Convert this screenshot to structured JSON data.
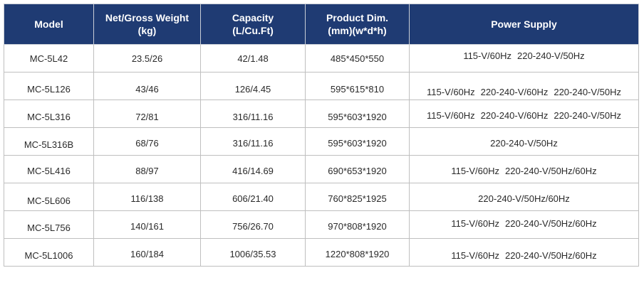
{
  "headers": {
    "model": "Model",
    "weight_line1": "Net/Gross Weight",
    "weight_line2": "(kg)",
    "capacity_line1": "Capacity",
    "capacity_line2": "(L/Cu.Ft)",
    "dim_line1": "Product Dim.",
    "dim_line2": "(mm)(w*d*h)",
    "power": "Power Supply"
  },
  "rows": [
    {
      "model": "MC-5L42",
      "weight": "23.5/26",
      "capacity": "42/1.48",
      "dim": "485*450*550",
      "power": [
        "115-V/60Hz",
        "220-240-V/50Hz"
      ]
    },
    {
      "model": "MC-5L126",
      "weight": "43/46",
      "capacity": "126/4.45",
      "dim": "595*615*810",
      "power": [
        "115-V/60Hz",
        "220-240-V/60Hz",
        "220-240-V/50Hz"
      ]
    },
    {
      "model": "MC-5L316",
      "weight": "72/81",
      "capacity": "316/11.16",
      "dim": "595*603*1920",
      "power": [
        "115-V/60Hz",
        "220-240-V/60Hz",
        "220-240-V/50Hz"
      ]
    },
    {
      "model": "MC-5L316B",
      "weight": "68/76",
      "capacity": "316/11.16",
      "dim": "595*603*1920",
      "power": [
        "220-240-V/50Hz"
      ]
    },
    {
      "model": "MC-5L416",
      "weight": "88/97",
      "capacity": "416/14.69",
      "dim": "690*653*1920",
      "power": [
        "115-V/60Hz",
        "220-240-V/50Hz/60Hz"
      ]
    },
    {
      "model": "MC-5L606",
      "weight": "116/138",
      "capacity": "606/21.40",
      "dim": "760*825*1925",
      "power": [
        "220-240-V/50Hz/60Hz"
      ]
    },
    {
      "model": "MC-5L756",
      "weight": "140/161",
      "capacity": "756/26.70",
      "dim": "970*808*1920",
      "power": [
        "115-V/60Hz",
        "220-240-V/50Hz/60Hz"
      ]
    },
    {
      "model": "MC-5L1006",
      "weight": "160/184",
      "capacity": "1006/35.53",
      "dim": "1220*808*1920",
      "power": [
        "115-V/60Hz",
        "220-240-V/50Hz/60Hz"
      ]
    }
  ]
}
